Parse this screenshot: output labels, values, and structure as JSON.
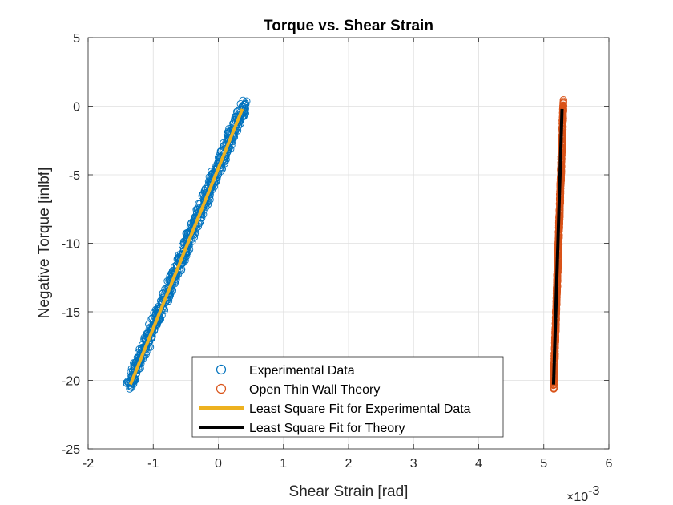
{
  "chart_data": {
    "type": "scatter",
    "title": "Torque vs. Shear Strain",
    "xlabel": "Shear Strain [rad]",
    "ylabel": "Negative Torque [inlbf]",
    "x_exponent_base": "×10",
    "x_exponent_power": "-3",
    "x_scale_factor": 0.001,
    "xlim": [
      -2,
      6
    ],
    "ylim": [
      -25,
      5
    ],
    "xticks": [
      -2,
      -1,
      0,
      1,
      2,
      3,
      4,
      5,
      6
    ],
    "yticks": [
      -25,
      -20,
      -15,
      -10,
      -5,
      0,
      5
    ],
    "xtick_labels": [
      "-2",
      "-1",
      "0",
      "1",
      "2",
      "3",
      "4",
      "5",
      "6"
    ],
    "ytick_labels": [
      "-25",
      "-20",
      "-15",
      "-10",
      "-5",
      "0",
      "5"
    ],
    "grid": true,
    "legend_position": "bottom-center",
    "series": [
      {
        "name": "Experimental Data",
        "kind": "scatter",
        "color": "#0072BD",
        "x_range": [
          -1.38,
          0.4
        ],
        "y_range": [
          -20.5,
          0.2
        ]
      },
      {
        "name": "Open Thin Wall Theory",
        "kind": "scatter",
        "color": "#D95319",
        "x_range": [
          5.15,
          5.3
        ],
        "y_range": [
          -20.5,
          0.2
        ]
      },
      {
        "name": "Least Square Fit for Experimental Data",
        "kind": "line",
        "color": "#EDB120",
        "x": [
          -1.35,
          0.37
        ],
        "y": [
          -20.3,
          -0.2
        ]
      },
      {
        "name": "Least Square Fit for Theory",
        "kind": "line",
        "color": "#000000",
        "x": [
          5.15,
          5.28
        ],
        "y": [
          -20.3,
          -0.2
        ]
      }
    ]
  }
}
